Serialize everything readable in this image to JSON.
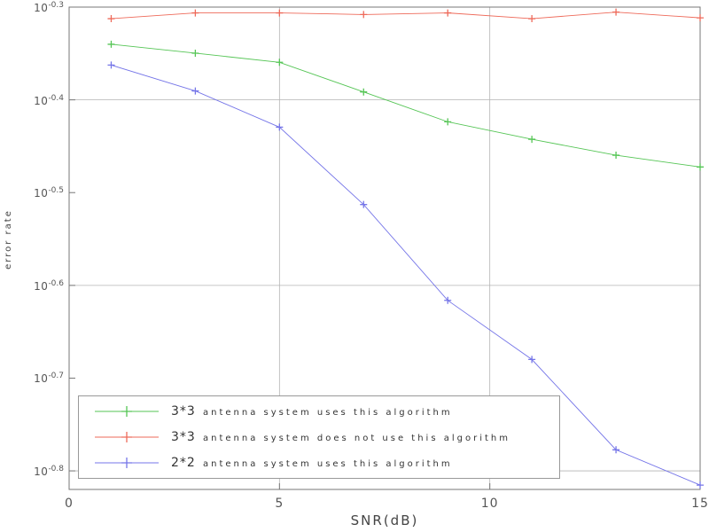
{
  "chart_data": {
    "type": "line",
    "title": "",
    "xlabel": "SNR(dB)",
    "ylabel": "error rate",
    "x": [
      1,
      3,
      5,
      7,
      9,
      11,
      13,
      15
    ],
    "series": [
      {
        "name": "3*3 antenna system uses this algorithm",
        "color": "#55c555",
        "marker": "plus",
        "values": [
          0.457,
          0.447,
          0.437,
          0.406,
          0.377,
          0.361,
          0.347,
          0.337
        ]
      },
      {
        "name": "3*3 antenna system does not use this algorithm",
        "color": "#ee6a5a",
        "marker": "plus",
        "values": [
          0.487,
          0.494,
          0.494,
          0.492,
          0.494,
          0.487,
          0.495,
          0.488
        ]
      },
      {
        "name": "2*2 antenna system uses this algorithm",
        "color": "#7575e8",
        "marker": "plus",
        "values": [
          0.434,
          0.407,
          0.372,
          0.307,
          0.242,
          0.209,
          0.167,
          0.153
        ]
      }
    ],
    "xlim": [
      0,
      15
    ],
    "ylim_exp": [
      -0.82,
      -0.3
    ],
    "x_ticks": [
      0,
      5,
      10,
      15
    ],
    "x_tick_labels": [
      "0",
      "5",
      "10",
      "15"
    ],
    "y_tick_exponents": [
      -0.3,
      -0.4,
      -0.5,
      -0.6,
      -0.7,
      -0.8
    ],
    "y_tick_base": "10",
    "grid": {
      "x_values": [
        5,
        10
      ],
      "y_exponents": [
        -0.4,
        -0.6,
        -0.8
      ]
    },
    "legend_position": "bottom-left",
    "axis_color": "#777777",
    "grid_color": "#b4b4b4",
    "scale_y": "log10"
  }
}
